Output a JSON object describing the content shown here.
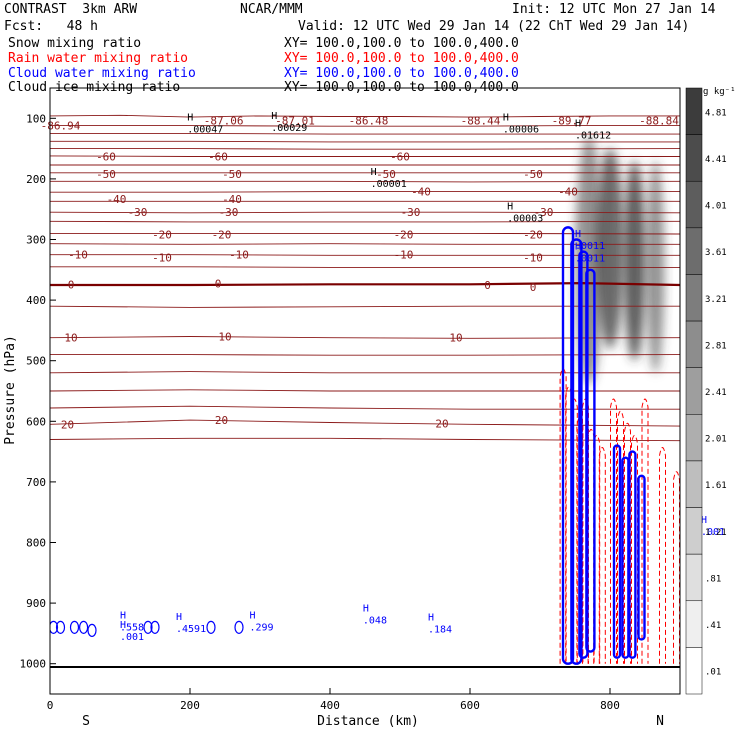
{
  "header": {
    "model": "CONTRAST  3km ARW",
    "center": "NCAR/MMM",
    "init": "Init: 12 UTC Mon 27 Jan 14",
    "fcst": "Fcst:   48 h",
    "valid": "Valid: 12 UTC Wed 29 Jan 14 (22 ChT Wed 29 Jan 14)"
  },
  "legend": [
    {
      "label": "Snow mixing ratio",
      "color": "#000000",
      "xy": "XY= 100.0,100.0 to 100.0,400.0"
    },
    {
      "label": "Rain water mixing ratio",
      "color": "#ff0000",
      "xy": "XY= 100.0,100.0 to 100.0,400.0"
    },
    {
      "label": "Cloud water mixing ratio",
      "color": "#0000ff",
      "xy": "XY= 100.0,100.0 to 100.0,400.0"
    },
    {
      "label": "Cloud ice mixing ratio",
      "color": "#000000",
      "xy": "XY= 100.0,100.0 to 100.0,400.0"
    }
  ],
  "colors": {
    "temp": "#8b1a1a",
    "zero": "#7a0000",
    "rain": "#ff0000",
    "cloud": "#0000ff",
    "axis": "#000000"
  },
  "chart_data": {
    "type": "cross-section",
    "xlabel": "Distance (km)",
    "ylabel": "Pressure (hPa)",
    "xlim": [
      0,
      900
    ],
    "ylim": [
      1050,
      50
    ],
    "xticks": [
      0,
      200,
      400,
      600,
      800
    ],
    "yticks": [
      100,
      200,
      300,
      400,
      500,
      600,
      700,
      800,
      900,
      1000
    ],
    "x_end_labels": {
      "left": "S",
      "right": "N"
    },
    "colorbar": {
      "unit": "g kg⁻¹",
      "ticks": [
        "4.81",
        "4.41",
        "4.01",
        "3.61",
        "3.21",
        "2.81",
        "2.41",
        "2.01",
        "1.61",
        "1.21",
        ".81",
        ".41",
        ".01"
      ]
    },
    "isotherms": [
      {
        "t": -88,
        "p": [
          [
            0,
            96
          ],
          [
            100,
            95
          ],
          [
            200,
            98
          ],
          [
            300,
            96
          ],
          [
            400,
            97
          ],
          [
            500,
            97
          ],
          [
            600,
            98
          ],
          [
            700,
            97
          ],
          [
            800,
            96
          ],
          [
            900,
            96
          ]
        ]
      },
      {
        "t": -80,
        "p": [
          [
            0,
            112
          ],
          [
            200,
            112
          ],
          [
            400,
            113
          ],
          [
            600,
            113
          ],
          [
            750,
            112
          ],
          [
            900,
            112
          ]
        ]
      },
      {
        "t": -75,
        "p": [
          [
            0,
            125
          ],
          [
            200,
            125
          ],
          [
            400,
            126
          ],
          [
            600,
            126
          ],
          [
            900,
            126
          ]
        ]
      },
      {
        "t": -70,
        "p": [
          [
            0,
            138
          ],
          [
            200,
            138
          ],
          [
            400,
            139
          ],
          [
            600,
            139
          ],
          [
            900,
            139
          ]
        ]
      },
      {
        "t": -65,
        "p": [
          [
            0,
            150
          ],
          [
            200,
            150
          ],
          [
            400,
            151
          ],
          [
            600,
            151
          ],
          [
            900,
            150
          ]
        ]
      },
      {
        "t": -60,
        "p": [
          [
            0,
            162
          ],
          [
            200,
            163
          ],
          [
            400,
            163
          ],
          [
            600,
            163
          ],
          [
            900,
            163
          ]
        ]
      },
      {
        "t": -55,
        "p": [
          [
            0,
            177
          ],
          [
            200,
            177
          ],
          [
            400,
            177
          ],
          [
            600,
            177
          ],
          [
            900,
            177
          ]
        ]
      },
      {
        "t": -50,
        "p": [
          [
            0,
            190
          ],
          [
            200,
            190
          ],
          [
            400,
            190
          ],
          [
            600,
            190
          ],
          [
            900,
            190
          ]
        ]
      },
      {
        "t": -45,
        "p": [
          [
            0,
            204
          ],
          [
            200,
            204
          ],
          [
            400,
            204
          ],
          [
            600,
            205
          ],
          [
            900,
            204
          ]
        ]
      },
      {
        "t": -40,
        "p": [
          [
            0,
            222
          ],
          [
            200,
            222
          ],
          [
            400,
            221
          ],
          [
            600,
            221
          ],
          [
            900,
            221
          ]
        ]
      },
      {
        "t": -35,
        "p": [
          [
            0,
            237
          ],
          [
            200,
            237
          ],
          [
            400,
            237
          ],
          [
            600,
            237
          ],
          [
            900,
            237
          ]
        ]
      },
      {
        "t": -30,
        "p": [
          [
            0,
            255
          ],
          [
            200,
            256
          ],
          [
            400,
            255
          ],
          [
            600,
            255
          ],
          [
            900,
            256
          ]
        ]
      },
      {
        "t": -25,
        "p": [
          [
            0,
            270
          ],
          [
            200,
            271
          ],
          [
            400,
            271
          ],
          [
            600,
            271
          ],
          [
            900,
            270
          ]
        ]
      },
      {
        "t": -20,
        "p": [
          [
            0,
            290
          ],
          [
            200,
            290
          ],
          [
            400,
            290
          ],
          [
            600,
            290
          ],
          [
            900,
            291
          ]
        ]
      },
      {
        "t": -15,
        "p": [
          [
            0,
            307
          ],
          [
            200,
            308
          ],
          [
            400,
            307
          ],
          [
            600,
            308
          ],
          [
            900,
            308
          ]
        ]
      },
      {
        "t": -10,
        "p": [
          [
            0,
            325
          ],
          [
            200,
            325
          ],
          [
            400,
            326
          ],
          [
            600,
            326
          ],
          [
            900,
            326
          ]
        ]
      },
      {
        "t": -5,
        "p": [
          [
            0,
            345
          ],
          [
            200,
            345
          ],
          [
            400,
            346
          ],
          [
            600,
            346
          ],
          [
            900,
            346
          ]
        ]
      },
      {
        "t": 0,
        "p": [
          [
            0,
            375
          ],
          [
            200,
            375
          ],
          [
            400,
            374
          ],
          [
            600,
            374
          ],
          [
            760,
            372
          ],
          [
            900,
            375
          ]
        ]
      },
      {
        "t": 5,
        "p": [
          [
            0,
            410
          ],
          [
            200,
            412
          ],
          [
            400,
            411
          ],
          [
            600,
            410
          ],
          [
            900,
            410
          ]
        ]
      },
      {
        "t": 10,
        "p": [
          [
            0,
            462
          ],
          [
            200,
            460
          ],
          [
            400,
            462
          ],
          [
            600,
            463
          ],
          [
            900,
            462
          ]
        ]
      },
      {
        "t": 12,
        "p": [
          [
            0,
            490
          ],
          [
            200,
            490
          ],
          [
            400,
            491
          ],
          [
            600,
            491
          ],
          [
            900,
            490
          ]
        ]
      },
      {
        "t": 14,
        "p": [
          [
            0,
            520
          ],
          [
            200,
            518
          ],
          [
            400,
            520
          ],
          [
            600,
            520
          ],
          [
            900,
            520
          ]
        ]
      },
      {
        "t": 16,
        "p": [
          [
            0,
            550
          ],
          [
            200,
            548
          ],
          [
            400,
            550
          ],
          [
            600,
            550
          ],
          [
            900,
            550
          ]
        ]
      },
      {
        "t": 18,
        "p": [
          [
            0,
            578
          ],
          [
            200,
            575
          ],
          [
            400,
            578
          ],
          [
            600,
            580
          ],
          [
            900,
            580
          ]
        ]
      },
      {
        "t": 20,
        "p": [
          [
            0,
            605
          ],
          [
            200,
            598
          ],
          [
            400,
            602
          ],
          [
            600,
            605
          ],
          [
            900,
            608
          ]
        ]
      },
      {
        "t": 22,
        "p": [
          [
            0,
            630
          ],
          [
            200,
            628
          ],
          [
            400,
            628
          ],
          [
            600,
            630
          ],
          [
            900,
            632
          ]
        ]
      }
    ],
    "temp_labels": [
      {
        "text": "-86.94",
        "x": 15,
        "p": 112
      },
      {
        "text": "-87.06",
        "x": 248,
        "p": 104
      },
      {
        "text": "-87.01",
        "x": 350,
        "p": 104
      },
      {
        "text": "-86.48",
        "x": 455,
        "p": 104
      },
      {
        "text": "-88.44",
        "x": 615,
        "p": 104
      },
      {
        "text": "-89.77",
        "x": 745,
        "p": 104
      },
      {
        "text": "-88.84",
        "x": 870,
        "p": 104
      },
      {
        "text": "-60",
        "x": 80,
        "p": 163
      },
      {
        "text": "-60",
        "x": 240,
        "p": 163
      },
      {
        "text": "-60",
        "x": 500,
        "p": 163
      },
      {
        "text": "-50",
        "x": 80,
        "p": 192
      },
      {
        "text": "-50",
        "x": 260,
        "p": 192
      },
      {
        "text": "-50",
        "x": 480,
        "p": 192
      },
      {
        "text": "-50",
        "x": 690,
        "p": 192
      },
      {
        "text": "-40",
        "x": 95,
        "p": 233
      },
      {
        "text": "-40",
        "x": 260,
        "p": 233
      },
      {
        "text": "-40",
        "x": 530,
        "p": 221
      },
      {
        "text": "-40",
        "x": 740,
        "p": 221
      },
      {
        "text": "-30",
        "x": 125,
        "p": 255
      },
      {
        "text": "-30",
        "x": 255,
        "p": 255
      },
      {
        "text": "-30",
        "x": 515,
        "p": 255
      },
      {
        "text": "-30",
        "x": 705,
        "p": 255
      },
      {
        "text": "-20",
        "x": 160,
        "p": 292
      },
      {
        "text": "-20",
        "x": 245,
        "p": 292
      },
      {
        "text": "-20",
        "x": 505,
        "p": 292
      },
      {
        "text": "-20",
        "x": 690,
        "p": 292
      },
      {
        "text": "-10",
        "x": 40,
        "p": 325
      },
      {
        "text": "-10",
        "x": 160,
        "p": 330
      },
      {
        "text": "-10",
        "x": 270,
        "p": 325
      },
      {
        "text": "-10",
        "x": 505,
        "p": 325
      },
      {
        "text": "-10",
        "x": 690,
        "p": 330
      },
      {
        "text": "0",
        "x": 30,
        "p": 374
      },
      {
        "text": "0",
        "x": 240,
        "p": 373
      },
      {
        "text": "0",
        "x": 625,
        "p": 375
      },
      {
        "text": "0",
        "x": 690,
        "p": 378
      },
      {
        "text": "10",
        "x": 30,
        "p": 462
      },
      {
        "text": "10",
        "x": 250,
        "p": 460
      },
      {
        "text": "10",
        "x": 580,
        "p": 462
      },
      {
        "text": "20",
        "x": 25,
        "p": 605
      },
      {
        "text": "20",
        "x": 245,
        "p": 598
      },
      {
        "text": "20",
        "x": 560,
        "p": 604
      }
    ],
    "ice_h_labels": [
      {
        "text": ".00047",
        "x": 196,
        "p": 120
      },
      {
        "text": ".00029",
        "x": 316,
        "p": 118
      },
      {
        "text": ".00006",
        "x": 647,
        "p": 120
      },
      {
        "text": ".01612",
        "x": 750,
        "p": 130
      },
      {
        "text": ".00001",
        "x": 458,
        "p": 210
      },
      {
        "text": ".00003",
        "x": 653,
        "p": 267
      }
    ],
    "cloud_h_labels": [
      {
        "text": ".558",
        "x": 100,
        "p": 942
      },
      {
        "text": ".001",
        "x": 100,
        "p": 958
      },
      {
        "text": ".4591",
        "x": 180,
        "p": 944
      },
      {
        "text": ".299",
        "x": 285,
        "p": 942
      },
      {
        "text": ".048",
        "x": 447,
        "p": 930
      },
      {
        "text": ".184",
        "x": 540,
        "p": 945
      },
      {
        "text": ".001",
        "x": 930,
        "p": 784
      },
      {
        "text": ".0011",
        "x": 750,
        "p": 312
      },
      {
        "text": ".0011",
        "x": 750,
        "p": 333
      }
    ],
    "snow_columns": [
      {
        "x": 770,
        "pTop": 130,
        "pBot": 540,
        "w": 28,
        "i": 0.55
      },
      {
        "x": 800,
        "pTop": 150,
        "pBot": 480,
        "w": 28,
        "i": 0.75
      },
      {
        "x": 835,
        "pTop": 170,
        "pBot": 500,
        "w": 22,
        "i": 0.8
      },
      {
        "x": 865,
        "pTop": 170,
        "pBot": 520,
        "w": 18,
        "i": 0.55
      }
    ],
    "cloud_columns": [
      {
        "x": 740,
        "pTop": 280,
        "pBot": 1000,
        "w": 10
      },
      {
        "x": 752,
        "pTop": 300,
        "pBot": 1000,
        "w": 10
      },
      {
        "x": 762,
        "pTop": 320,
        "pBot": 990,
        "w": 8
      },
      {
        "x": 772,
        "pTop": 350,
        "pBot": 980,
        "w": 8
      },
      {
        "x": 810,
        "pTop": 640,
        "pBot": 990,
        "w": 6
      },
      {
        "x": 822,
        "pTop": 660,
        "pBot": 990,
        "w": 6
      },
      {
        "x": 832,
        "pTop": 650,
        "pBot": 990,
        "w": 6
      },
      {
        "x": 845,
        "pTop": 690,
        "pBot": 960,
        "w": 6
      }
    ],
    "rain_columns": [
      {
        "x": 733,
        "pTop": 510,
        "pBot": 1000
      },
      {
        "x": 741,
        "pTop": 540,
        "pBot": 1000
      },
      {
        "x": 749,
        "pTop": 560,
        "pBot": 1000
      },
      {
        "x": 757,
        "pTop": 590,
        "pBot": 1000
      },
      {
        "x": 765,
        "pTop": 560,
        "pBot": 1000
      },
      {
        "x": 773,
        "pTop": 610,
        "pBot": 1000
      },
      {
        "x": 781,
        "pTop": 620,
        "pBot": 1000
      },
      {
        "x": 789,
        "pTop": 640,
        "pBot": 1000
      },
      {
        "x": 805,
        "pTop": 560,
        "pBot": 1000
      },
      {
        "x": 815,
        "pTop": 580,
        "pBot": 1000
      },
      {
        "x": 825,
        "pTop": 600,
        "pBot": 1000
      },
      {
        "x": 835,
        "pTop": 620,
        "pBot": 1000
      },
      {
        "x": 850,
        "pTop": 560,
        "pBot": 1000
      },
      {
        "x": 875,
        "pTop": 640,
        "pBot": 1000
      },
      {
        "x": 895,
        "pTop": 680,
        "pBot": 1000
      }
    ]
  }
}
